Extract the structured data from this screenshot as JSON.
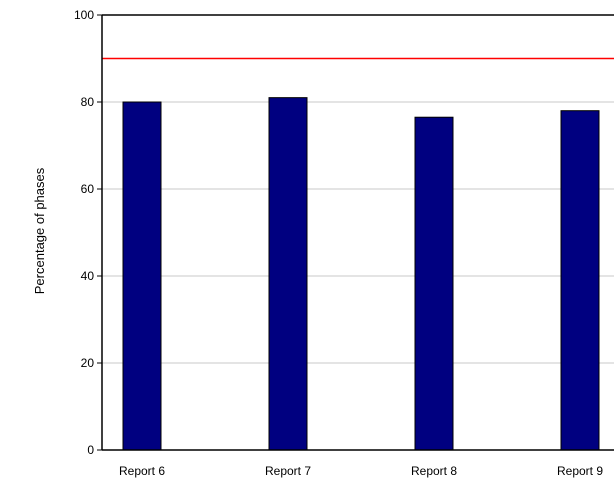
{
  "chart_data": {
    "type": "bar",
    "categories": [
      "Report 6",
      "Report 7",
      "Report 8",
      "Report 9"
    ],
    "values": [
      80,
      81,
      76.5,
      78
    ],
    "ylabel": "Percentage of phases",
    "xlabel": "",
    "ylim": [
      0,
      100
    ],
    "yticks": [
      0,
      20,
      40,
      60,
      80,
      100
    ],
    "reference_line": 90,
    "grid": true,
    "colors": {
      "bar": "#000080",
      "bar_outline": "#000000",
      "reference_line": "#ff0000",
      "grid": "#c8c8c8",
      "axis": "#000000"
    }
  }
}
